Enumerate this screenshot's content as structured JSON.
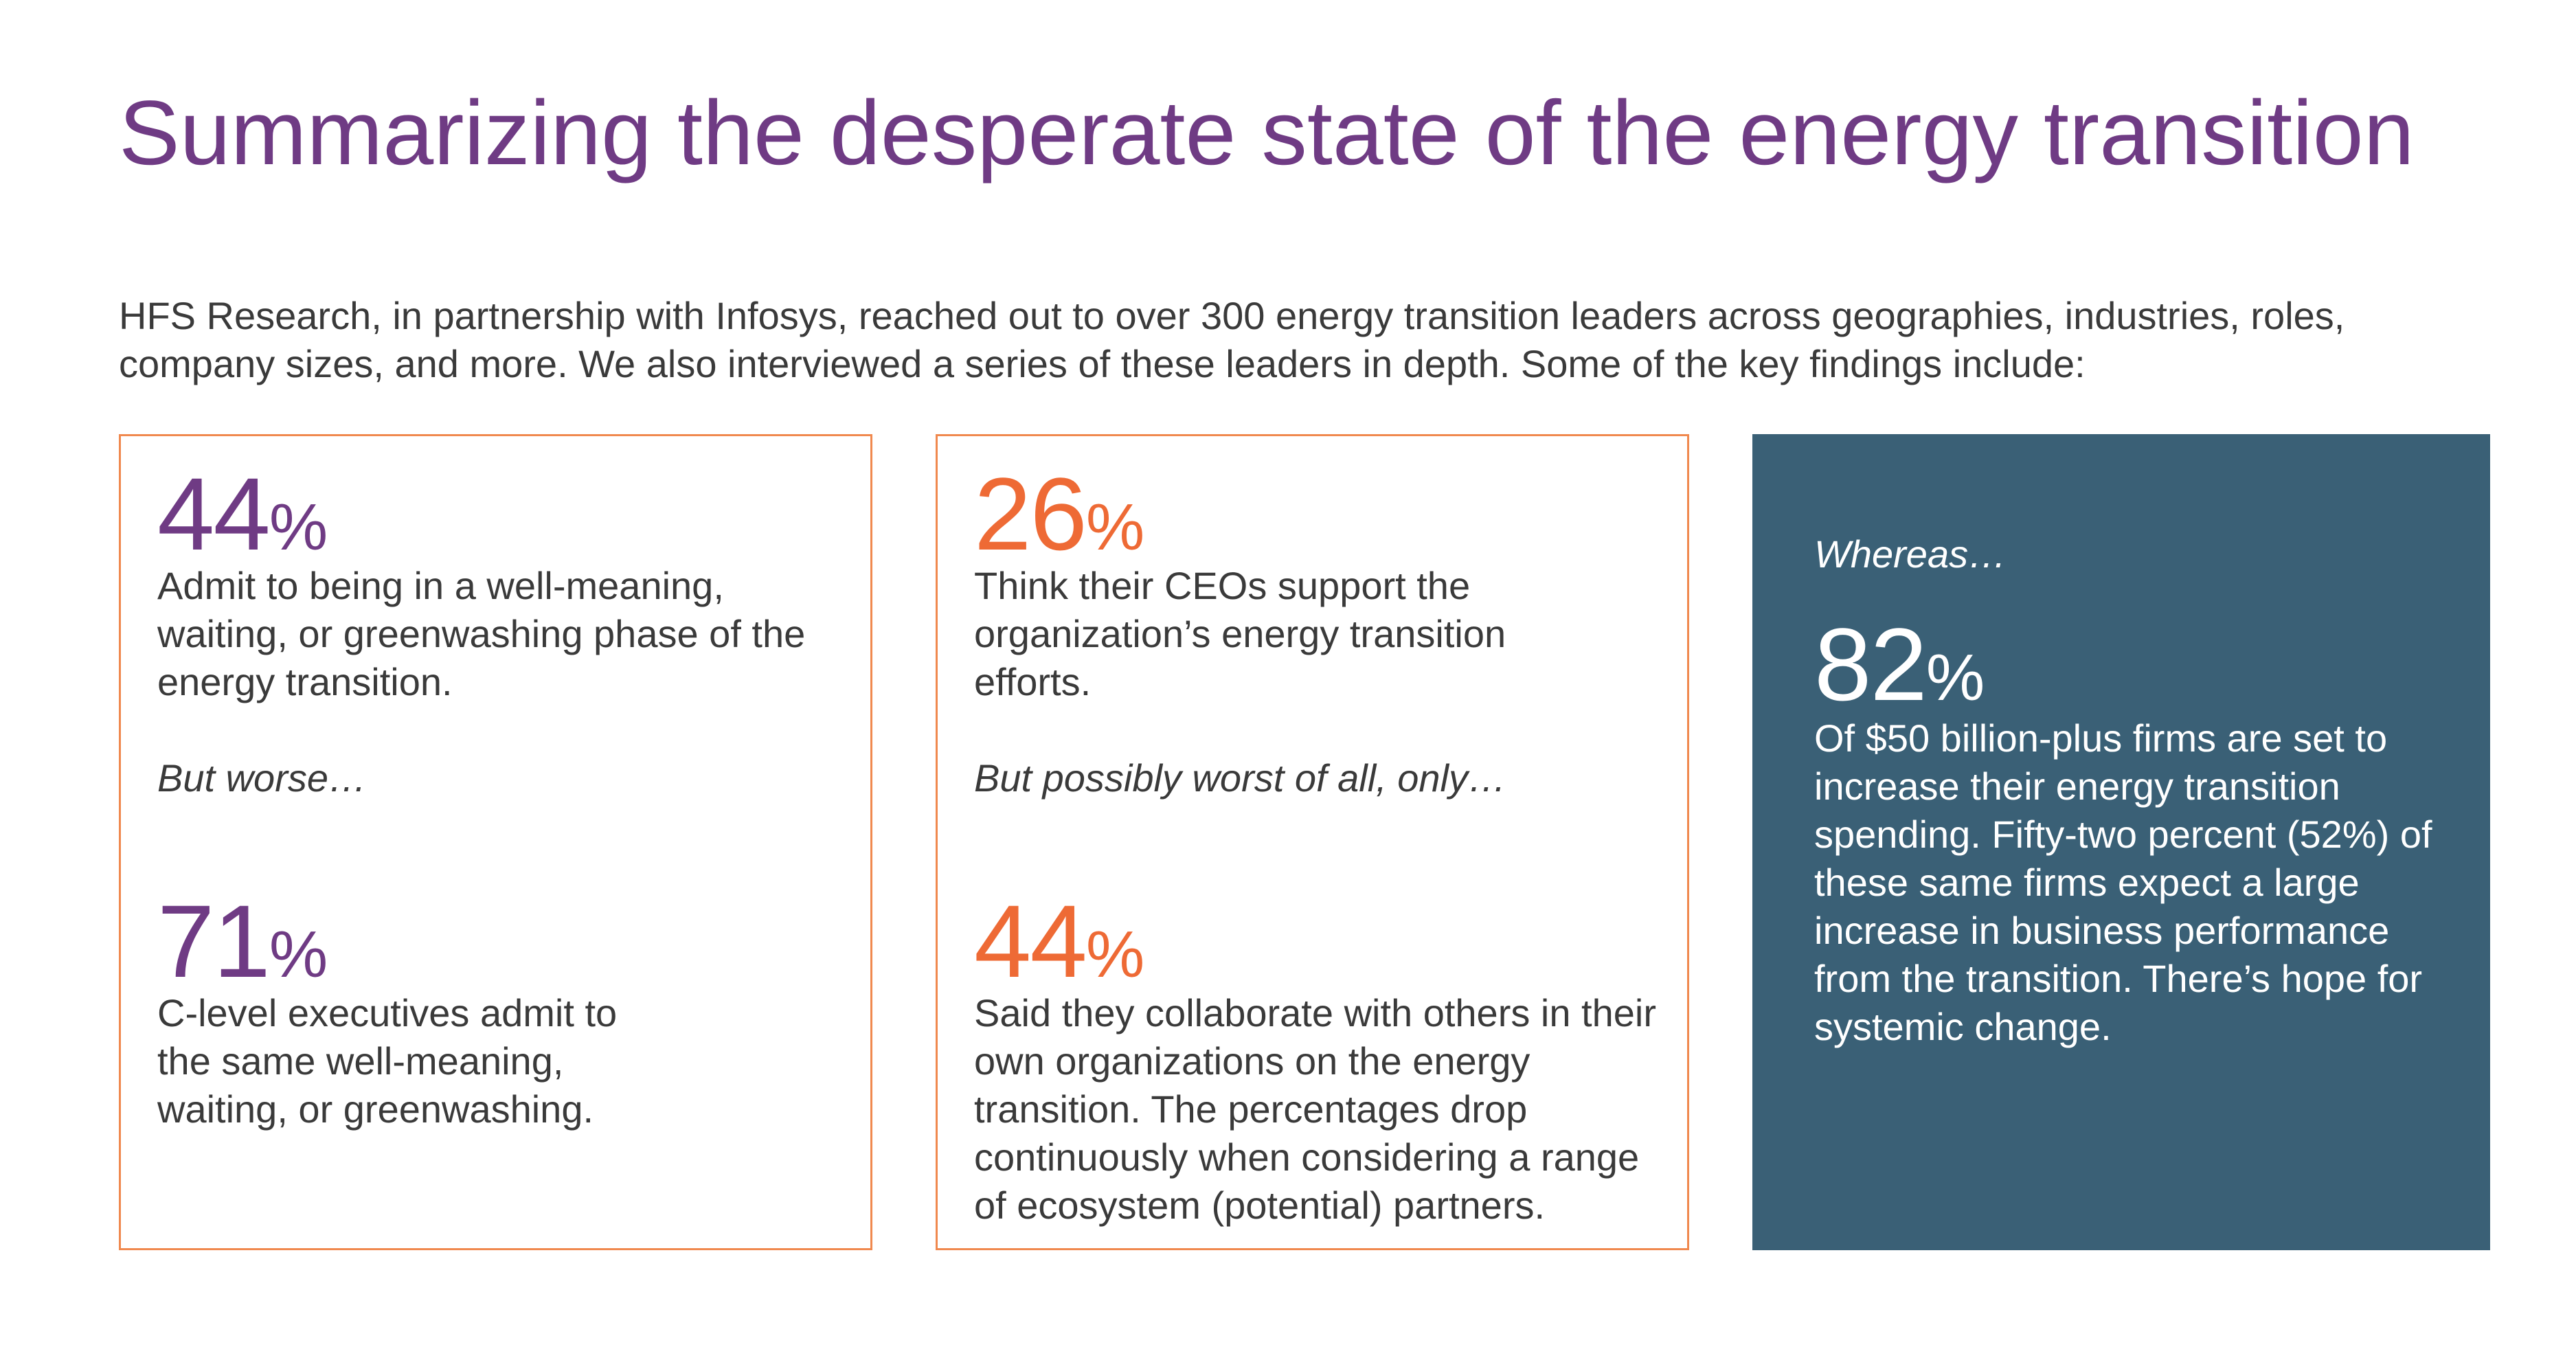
{
  "slide": {
    "title": "Summarizing the desperate state of the energy transition",
    "intro": "HFS Research, in partnership with Infosys, reached out to over 300 energy transition leaders across geographies, industries, roles, company sizes, and more. We also interviewed a series of these leaders in depth. Some of the key findings include:"
  },
  "cards": [
    {
      "stat1": {
        "value": "44",
        "unit": "%",
        "text": "Admit to being in a well-meaning, waiting, or greenwashing phase of the energy transition."
      },
      "lead": "But worse…",
      "stat2": {
        "value": "71",
        "unit": "%",
        "text": "C-level executives admit to the same well-meaning, waiting, or greenwashing."
      }
    },
    {
      "stat1": {
        "value": "26",
        "unit": "%",
        "text": "Think their CEOs support the organization’s energy transition efforts."
      },
      "lead": "But possibly worst of all, only…",
      "stat2": {
        "value": "44",
        "unit": "%",
        "text": "Said they collaborate with others in their own organizations on the energy transition. The percentages drop continuously when considering a range of ecosystem (potential) partners."
      }
    },
    {
      "lead": "Whereas…",
      "stat1": {
        "value": "82",
        "unit": "%",
        "text": "Of $50 billion-plus firms are set to increase their energy transition spending. Fifty-two percent (52%) of these same firms expect a large increase in business performance from the transition. There’s hope for systemic change."
      }
    }
  ],
  "colors": {
    "title": "#6f3b84",
    "stat_purple": "#6f3b84",
    "stat_orange": "#ee6a35",
    "card_border": "#f0894f",
    "card_dark": "#3a6076",
    "body_text": "#3a3a3a"
  }
}
